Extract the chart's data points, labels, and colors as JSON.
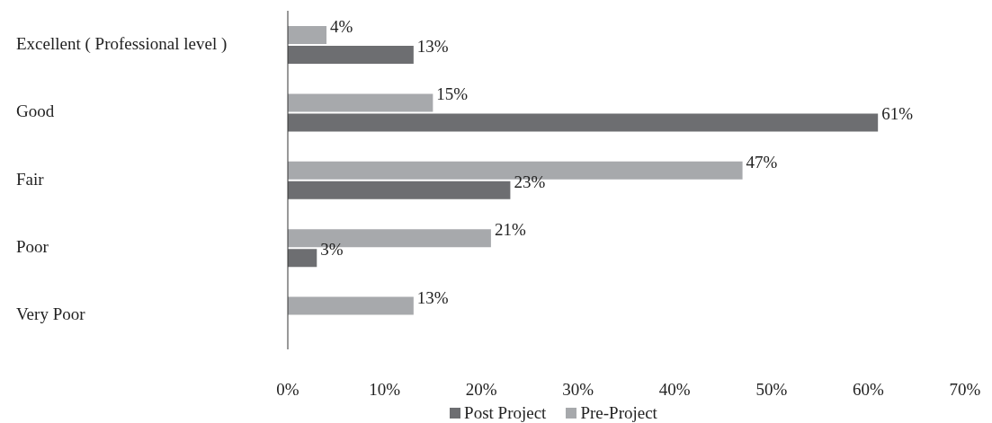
{
  "chart_data": {
    "type": "bar",
    "orientation": "horizontal",
    "categories": [
      "Excellent ( Professional level )",
      "Good",
      "Fair",
      "Poor",
      "Very Poor"
    ],
    "series": [
      {
        "name": "Pre-Project",
        "color": "#a7a9ac",
        "values": [
          4,
          15,
          47,
          21,
          13
        ],
        "value_labels": [
          "4%",
          "15%",
          "47%",
          "21%",
          "13%"
        ]
      },
      {
        "name": "Post Project",
        "color": "#6d6e71",
        "values": [
          13,
          61,
          23,
          3,
          null
        ],
        "value_labels": [
          "13%",
          "61%",
          "23%",
          "3%",
          null
        ]
      }
    ],
    "xlim": [
      0,
      70
    ],
    "xticks": [
      {
        "value": 0,
        "label": "0%"
      },
      {
        "value": 10,
        "label": "10%"
      },
      {
        "value": 20,
        "label": "20%"
      },
      {
        "value": 30,
        "label": "30%"
      },
      {
        "value": 40,
        "label": "40%"
      },
      {
        "value": 50,
        "label": "50%"
      },
      {
        "value": 60,
        "label": "60%"
      },
      {
        "value": 70,
        "label": "70%"
      }
    ],
    "legend": "bottom",
    "grid": false
  }
}
